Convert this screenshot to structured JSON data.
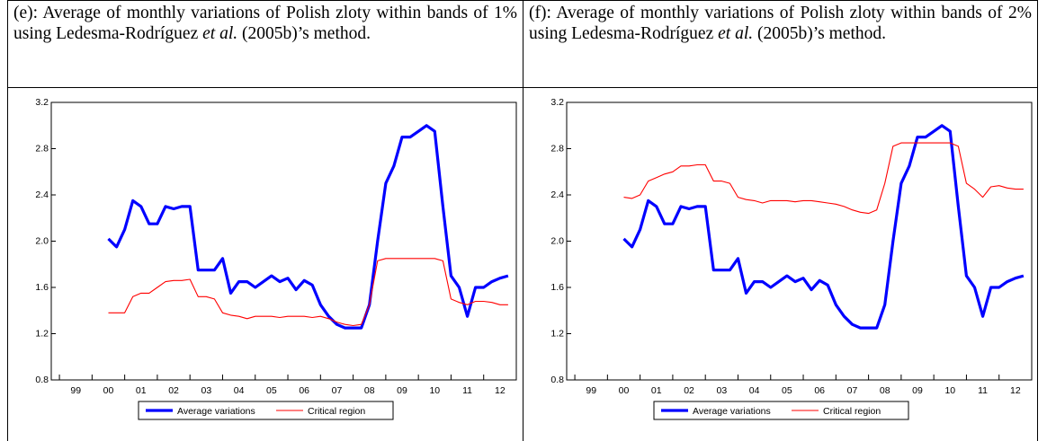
{
  "chart_data": [
    {
      "type": "line",
      "title": [
        "(e): Average of monthly variations of Polish zloty within bands of 1% using Ledesma-Rodríguez ",
        "et al.",
        " (2005b)’s method."
      ],
      "x": [
        2000.5,
        2000.75,
        2001,
        2001.25,
        2001.5,
        2001.75,
        2002,
        2002.25,
        2002.5,
        2002.75,
        2003,
        2003.25,
        2003.5,
        2003.75,
        2004,
        2004.25,
        2004.5,
        2004.75,
        2005,
        2005.25,
        2005.5,
        2005.75,
        2006,
        2006.25,
        2006.5,
        2006.75,
        2007,
        2007.25,
        2007.5,
        2007.75,
        2008,
        2008.25,
        2008.5,
        2008.75,
        2009,
        2009.25,
        2009.5,
        2009.75,
        2010,
        2010.25,
        2010.5,
        2010.75,
        2011,
        2011.25,
        2011.5,
        2011.75,
        2012,
        2012.25,
        2012.5,
        2012.75
      ],
      "series": [
        {
          "name": "Average variations",
          "color": "#0000ff",
          "values": [
            2.02,
            1.95,
            2.1,
            2.35,
            2.3,
            2.15,
            2.15,
            2.3,
            2.28,
            2.3,
            2.3,
            1.75,
            1.75,
            1.75,
            1.85,
            1.55,
            1.65,
            1.65,
            1.6,
            1.65,
            1.7,
            1.65,
            1.68,
            1.58,
            1.66,
            1.62,
            1.45,
            1.35,
            1.28,
            1.25,
            1.25,
            1.25,
            1.45,
            2.0,
            2.5,
            2.65,
            2.9,
            2.9,
            2.95,
            3.0,
            2.95,
            2.3,
            1.7,
            1.6,
            1.35,
            1.6,
            1.6,
            1.65,
            1.68,
            1.7
          ]
        },
        {
          "name": "Critical region",
          "color": "#ff0000",
          "values": [
            1.38,
            1.38,
            1.38,
            1.52,
            1.55,
            1.55,
            1.6,
            1.65,
            1.66,
            1.66,
            1.67,
            1.52,
            1.52,
            1.5,
            1.38,
            1.36,
            1.35,
            1.33,
            1.35,
            1.35,
            1.35,
            1.34,
            1.35,
            1.35,
            1.35,
            1.34,
            1.35,
            1.33,
            1.3,
            1.28,
            1.27,
            1.28,
            1.45,
            1.83,
            1.85,
            1.85,
            1.85,
            1.85,
            1.85,
            1.85,
            1.85,
            1.83,
            1.5,
            1.47,
            1.45,
            1.48,
            1.48,
            1.47,
            1.45,
            1.45
          ]
        }
      ],
      "xlim": [
        1998.75,
        2013
      ],
      "xticks": [
        {
          "value": 1999,
          "label": "99"
        },
        {
          "value": 2000,
          "label": "00"
        },
        {
          "value": 2001,
          "label": "01"
        },
        {
          "value": 2002,
          "label": "02"
        },
        {
          "value": 2003,
          "label": "03"
        },
        {
          "value": 2004,
          "label": "04"
        },
        {
          "value": 2005,
          "label": "05"
        },
        {
          "value": 2006,
          "label": "06"
        },
        {
          "value": 2007,
          "label": "07"
        },
        {
          "value": 2008,
          "label": "08"
        },
        {
          "value": 2009,
          "label": "09"
        },
        {
          "value": 2010,
          "label": "10"
        },
        {
          "value": 2011,
          "label": "11"
        },
        {
          "value": 2012,
          "label": "12"
        }
      ],
      "ylim": [
        0.8,
        3.2
      ],
      "yticks": [
        0.8,
        1.2,
        1.6,
        {
          "value": 2,
          "label": "2.0"
        },
        2.4,
        2.8,
        3.2
      ],
      "legend": "bottom"
    },
    {
      "type": "line",
      "title": [
        "(f): Average of monthly variations of Polish zloty within bands of 2% using Ledesma-Rodríguez ",
        "et al.",
        " (2005b)’s method."
      ],
      "x": [
        2000.5,
        2000.75,
        2001,
        2001.25,
        2001.5,
        2001.75,
        2002,
        2002.25,
        2002.5,
        2002.75,
        2003,
        2003.25,
        2003.5,
        2003.75,
        2004,
        2004.25,
        2004.5,
        2004.75,
        2005,
        2005.25,
        2005.5,
        2005.75,
        2006,
        2006.25,
        2006.5,
        2006.75,
        2007,
        2007.25,
        2007.5,
        2007.75,
        2008,
        2008.25,
        2008.5,
        2008.75,
        2009,
        2009.25,
        2009.5,
        2009.75,
        2010,
        2010.25,
        2010.5,
        2010.75,
        2011,
        2011.25,
        2011.5,
        2011.75,
        2012,
        2012.25,
        2012.5,
        2012.75
      ],
      "series": [
        {
          "name": "Average variations",
          "color": "#0000ff",
          "values": [
            2.02,
            1.95,
            2.1,
            2.35,
            2.3,
            2.15,
            2.15,
            2.3,
            2.28,
            2.3,
            2.3,
            1.75,
            1.75,
            1.75,
            1.85,
            1.55,
            1.65,
            1.65,
            1.6,
            1.65,
            1.7,
            1.65,
            1.68,
            1.58,
            1.66,
            1.62,
            1.45,
            1.35,
            1.28,
            1.25,
            1.25,
            1.25,
            1.45,
            2.0,
            2.5,
            2.65,
            2.9,
            2.9,
            2.95,
            3.0,
            2.95,
            2.3,
            1.7,
            1.6,
            1.35,
            1.6,
            1.6,
            1.65,
            1.68,
            1.7
          ]
        },
        {
          "name": "Critical region",
          "color": "#ff0000",
          "values": [
            2.38,
            2.37,
            2.4,
            2.52,
            2.55,
            2.58,
            2.6,
            2.65,
            2.65,
            2.66,
            2.66,
            2.52,
            2.52,
            2.5,
            2.38,
            2.36,
            2.35,
            2.33,
            2.35,
            2.35,
            2.35,
            2.34,
            2.35,
            2.35,
            2.34,
            2.33,
            2.32,
            2.3,
            2.27,
            2.25,
            2.24,
            2.27,
            2.5,
            2.82,
            2.85,
            2.85,
            2.85,
            2.85,
            2.85,
            2.85,
            2.85,
            2.82,
            2.5,
            2.45,
            2.38,
            2.47,
            2.48,
            2.46,
            2.45,
            2.45
          ]
        }
      ],
      "xlim": [
        1998.75,
        2013
      ],
      "xticks": [
        {
          "value": 1999,
          "label": "99"
        },
        {
          "value": 2000,
          "label": "00"
        },
        {
          "value": 2001,
          "label": "01"
        },
        {
          "value": 2002,
          "label": "02"
        },
        {
          "value": 2003,
          "label": "03"
        },
        {
          "value": 2004,
          "label": "04"
        },
        {
          "value": 2005,
          "label": "05"
        },
        {
          "value": 2006,
          "label": "06"
        },
        {
          "value": 2007,
          "label": "07"
        },
        {
          "value": 2008,
          "label": "08"
        },
        {
          "value": 2009,
          "label": "09"
        },
        {
          "value": 2010,
          "label": "10"
        },
        {
          "value": 2011,
          "label": "11"
        },
        {
          "value": 2012,
          "label": "12"
        }
      ],
      "ylim": [
        0.8,
        3.2
      ],
      "yticks": [
        0.8,
        1.2,
        1.6,
        {
          "value": 2,
          "label": "2.0"
        },
        2.4,
        2.8,
        3.2
      ],
      "legend": "bottom"
    }
  ]
}
